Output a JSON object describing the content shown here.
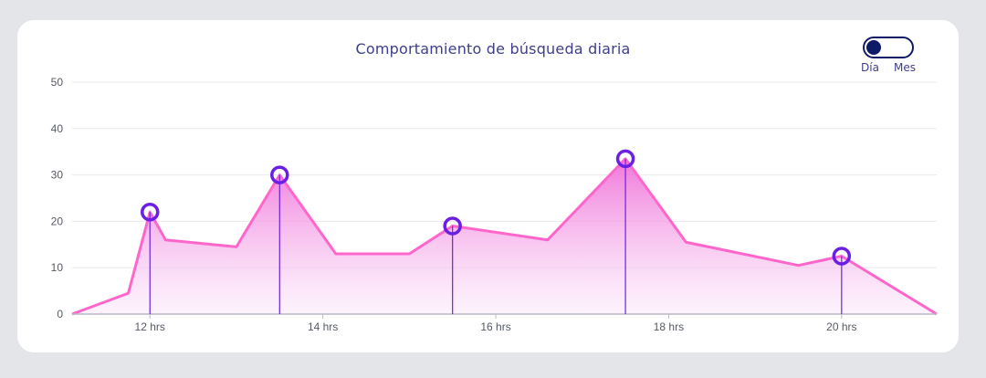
{
  "chart_data": {
    "type": "area",
    "title": "Comportamiento de búsqueda diaria",
    "xlabel": "",
    "ylabel": "",
    "ylim": [
      0,
      50
    ],
    "yticks": [
      0,
      10,
      20,
      30,
      40,
      50
    ],
    "xlim": [
      11.1,
      21.1
    ],
    "xticks": [
      {
        "value": 12,
        "label": "12 hrs"
      },
      {
        "value": 14,
        "label": "14 hrs"
      },
      {
        "value": 16,
        "label": "16 hrs"
      },
      {
        "value": 18,
        "label": "18 hrs"
      },
      {
        "value": 20,
        "label": "20 hrs"
      }
    ],
    "grid": true,
    "series": [
      {
        "x": [
          11.1,
          11.75,
          12.0,
          12.18,
          13.0,
          13.5,
          14.15,
          15.0,
          15.5,
          16.6,
          17.5,
          18.2,
          19.5,
          20.0,
          21.1
        ],
        "values": [
          0,
          4.5,
          22,
          16,
          14.5,
          30,
          13,
          13,
          19,
          16,
          33.5,
          15.5,
          10.5,
          12.5,
          0
        ]
      }
    ],
    "highlights": [
      {
        "x": 12.0,
        "y": 22
      },
      {
        "x": 13.5,
        "y": 30
      },
      {
        "x": 15.5,
        "y": 19
      },
      {
        "x": 17.5,
        "y": 33.5
      },
      {
        "x": 20.0,
        "y": 12.5
      }
    ],
    "colors": {
      "line": "#ff66cc",
      "area_top": "#f070d8",
      "area_bottom": "#fbe7fb",
      "marker": "#6b1fe6",
      "grid": "#e8e8ee",
      "axis": "#b8b8c6"
    }
  },
  "toggle": {
    "left_label": "Día",
    "right_label": "Mes",
    "selected": "Día"
  }
}
